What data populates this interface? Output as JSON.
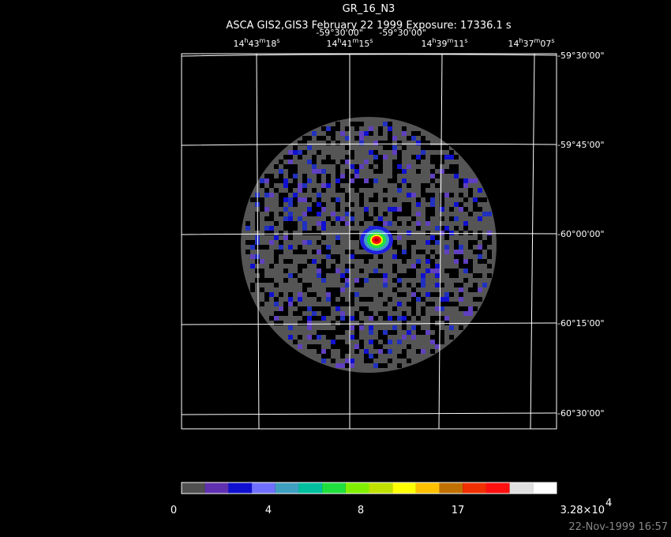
{
  "header": {
    "title": "GR_16_N3",
    "subtitle": "ASCA GIS2,GIS3 February 22 1999 Exposure: 17336.1 s"
  },
  "top_labels": {
    "dec": [
      "-59°30'00\"",
      "-59°30'00\""
    ],
    "ra": [
      [
        "14",
        "h",
        "43",
        "m",
        "18",
        "s"
      ],
      [
        "14",
        "h",
        "41",
        "m",
        "15",
        "s"
      ],
      [
        "14",
        "h",
        "39",
        "m",
        "11",
        "s"
      ],
      [
        "14",
        "h",
        "37",
        "m",
        "07",
        "s"
      ]
    ]
  },
  "right_labels": [
    "-59°30'00\"",
    "-59°45'00\"",
    "-60°00'00\"",
    "-60°15'00\"",
    "-60°30'00\""
  ],
  "colorbar": {
    "colors": [
      "#505050",
      "#6030b0",
      "#1010d0",
      "#7070ff",
      "#40a0c0",
      "#00c0a0",
      "#20e040",
      "#80f000",
      "#c0e000",
      "#ffff00",
      "#ffc000",
      "#c07000",
      "#f03000",
      "#ff1010",
      "#e0e0e0",
      "#ffffff"
    ],
    "labels": [
      "0",
      "4",
      "8",
      "17",
      "3.28×10",
      "4"
    ]
  },
  "footer": {
    "timestamp": "22-Nov-1999 16:57"
  }
}
